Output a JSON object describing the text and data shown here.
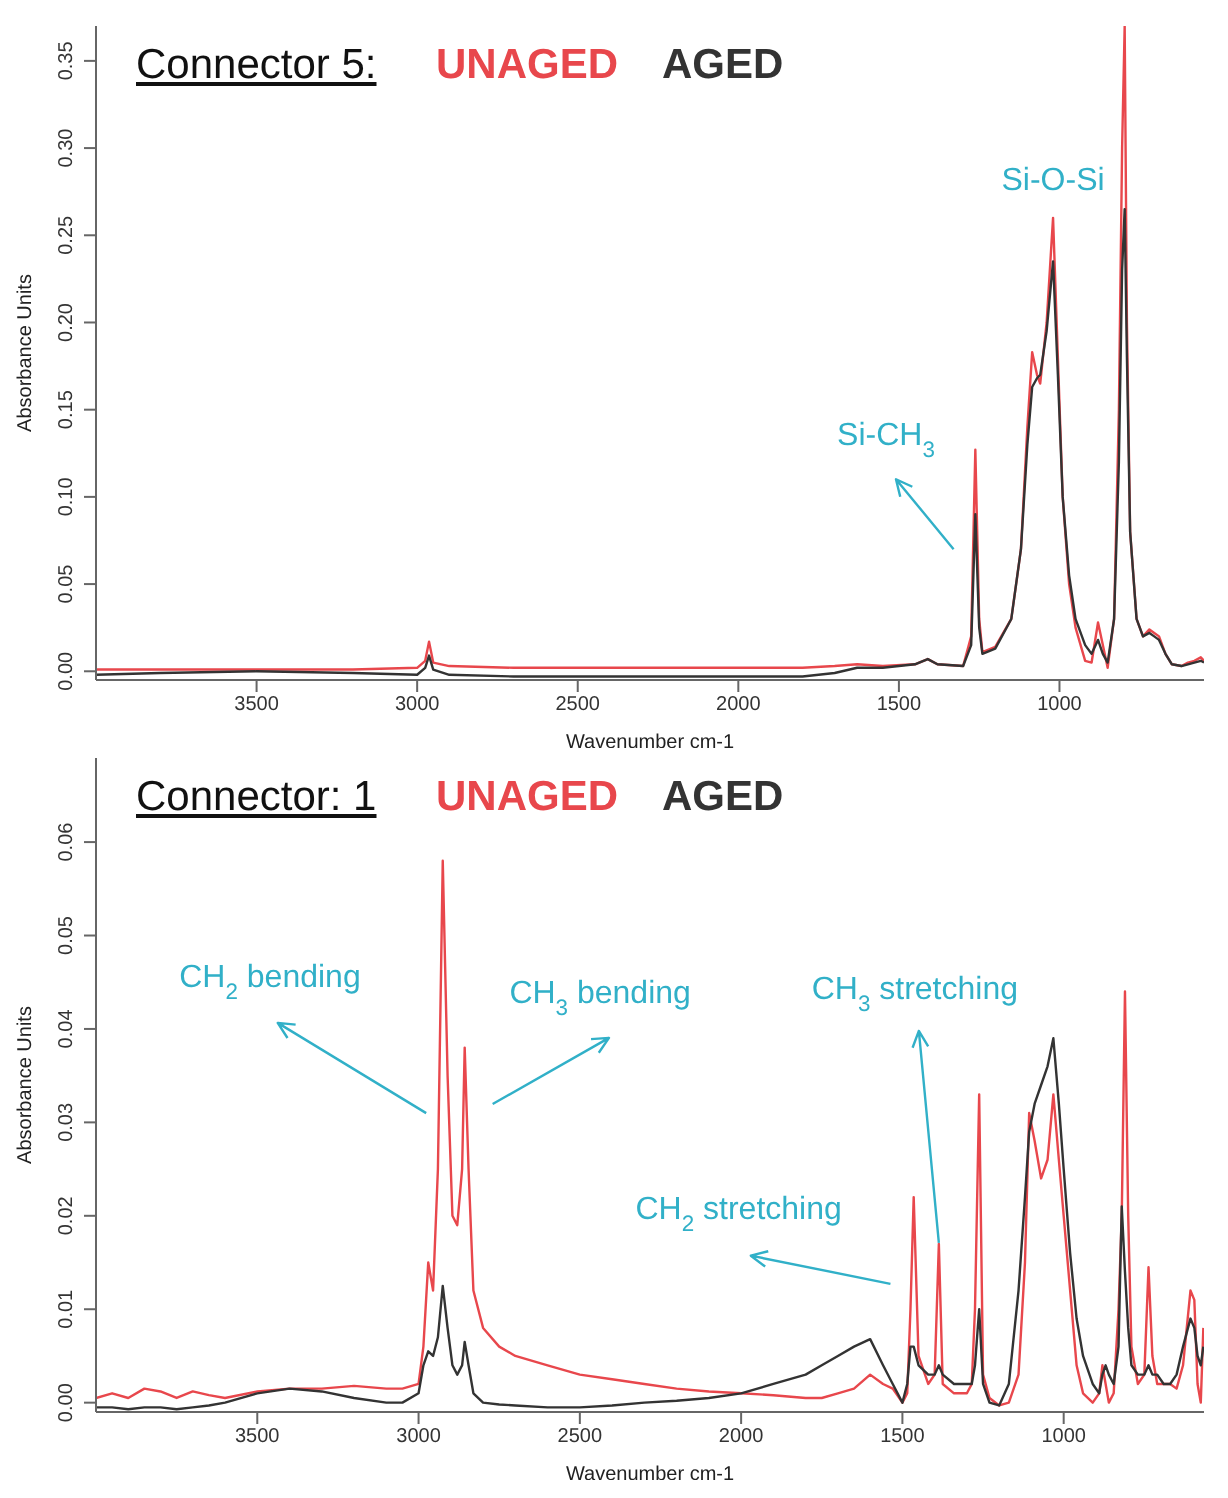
{
  "chart_data": [
    {
      "type": "line",
      "title": "Connector 5:",
      "xlabel": "Wavenumber cm-1",
      "ylabel": "Absorbance Units",
      "legend": "top left",
      "marker": "none",
      "line_style": "solid",
      "grid": false,
      "xlim": [
        4000,
        550
      ],
      "xticks": [
        3500,
        3000,
        2500,
        2000,
        1500,
        1000
      ],
      "ylim": [
        -0.005,
        0.37
      ],
      "yticks": [
        {
          "value": 0,
          "label": "0.00"
        },
        {
          "value": 0.05,
          "label": "0.05"
        },
        {
          "value": 0.1,
          "label": "0.10"
        },
        {
          "value": 0.15,
          "label": "0.15"
        },
        {
          "value": 0.2,
          "label": "0.20"
        },
        {
          "value": 0.25,
          "label": "0.25"
        },
        {
          "value": 0.3,
          "label": "0.30"
        },
        {
          "value": 0.35,
          "label": "0.35"
        }
      ],
      "annotations": [
        "Si-CH$_{3}$",
        {
          "text": "Si-O-Si",
          "x": 1020,
          "y": 0.26
        }
      ],
      "series": [
        {
          "name": "UNAGED",
          "color": "#e8474c",
          "x": [
            4000,
            3800,
            3500,
            3200,
            3000,
            2975,
            2963,
            2950,
            2900,
            2700,
            2500,
            2200,
            2000,
            1800,
            1700,
            1630,
            1550,
            1450,
            1410,
            1380,
            1300,
            1275,
            1262,
            1250,
            1240,
            1200,
            1150,
            1120,
            1100,
            1085,
            1070,
            1060,
            1040,
            1020,
            1005,
            990,
            970,
            950,
            920,
            900,
            880,
            865,
            850,
            830,
            815,
            805,
            797,
            790,
            780,
            760,
            740,
            720,
            705,
            690,
            670,
            650,
            620,
            600,
            580,
            560,
            550
          ],
          "values": [
            0.001,
            0.001,
            0.001,
            0.001,
            0.002,
            0.006,
            0.017,
            0.005,
            0.003,
            0.002,
            0.002,
            0.002,
            0.002,
            0.002,
            0.003,
            0.004,
            0.003,
            0.004,
            0.007,
            0.004,
            0.003,
            0.02,
            0.127,
            0.03,
            0.011,
            0.014,
            0.03,
            0.07,
            0.14,
            0.183,
            0.17,
            0.165,
            0.2,
            0.26,
            0.18,
            0.1,
            0.05,
            0.025,
            0.006,
            0.005,
            0.028,
            0.015,
            0.002,
            0.03,
            0.15,
            0.3,
            0.37,
            0.2,
            0.08,
            0.03,
            0.02,
            0.024,
            0.022,
            0.02,
            0.01,
            0.004,
            0.003,
            0.005,
            0.006,
            0.008,
            0.006
          ]
        },
        {
          "name": "AGED",
          "color": "#333333",
          "x": [
            4000,
            3800,
            3500,
            3200,
            3000,
            2975,
            2963,
            2950,
            2900,
            2700,
            2500,
            2200,
            2000,
            1800,
            1700,
            1630,
            1550,
            1450,
            1410,
            1380,
            1300,
            1275,
            1262,
            1250,
            1240,
            1200,
            1150,
            1120,
            1100,
            1085,
            1070,
            1060,
            1040,
            1020,
            1005,
            990,
            970,
            950,
            920,
            900,
            880,
            865,
            850,
            830,
            815,
            805,
            797,
            790,
            780,
            760,
            740,
            720,
            705,
            690,
            670,
            650,
            620,
            600,
            580,
            560,
            550
          ],
          "values": [
            -0.002,
            -0.001,
            0.0,
            -0.001,
            -0.002,
            0.002,
            0.009,
            0.001,
            -0.002,
            -0.003,
            -0.003,
            -0.003,
            -0.003,
            -0.003,
            -0.001,
            0.002,
            0.002,
            0.004,
            0.007,
            0.004,
            0.003,
            0.015,
            0.09,
            0.025,
            0.01,
            0.013,
            0.03,
            0.07,
            0.13,
            0.163,
            0.168,
            0.17,
            0.195,
            0.235,
            0.17,
            0.1,
            0.055,
            0.03,
            0.015,
            0.01,
            0.018,
            0.01,
            0.005,
            0.03,
            0.12,
            0.23,
            0.265,
            0.18,
            0.08,
            0.03,
            0.02,
            0.022,
            0.02,
            0.018,
            0.01,
            0.004,
            0.003,
            0.004,
            0.005,
            0.006,
            0.005
          ]
        }
      ]
    },
    {
      "type": "line",
      "title": "Connector: 1",
      "xlabel": "Wavenumber cm-1",
      "ylabel": "Absorbance Units",
      "legend": "top left",
      "marker": "none",
      "line_style": "solid",
      "grid": false,
      "xlim": [
        4000,
        565
      ],
      "xticks": [
        3500,
        3000,
        2500,
        2000,
        1500,
        1000
      ],
      "ylim": [
        -0.001,
        0.069
      ],
      "yticks": [
        {
          "value": 0,
          "label": "0.00"
        },
        {
          "value": 0.01,
          "label": "0.01"
        },
        {
          "value": 0.02,
          "label": "0.02"
        },
        {
          "value": 0.03,
          "label": "0.03"
        },
        {
          "value": 0.04,
          "label": "0.04"
        },
        {
          "value": 0.05,
          "label": "0.05"
        },
        {
          "value": 0.06,
          "label": "0.06"
        }
      ],
      "annotations": [
        "CH$_{2}$ bending",
        "CH$_{3}$ bending",
        {
          "text": "CH$_{3}$ stretching",
          "x": 1387,
          "y": 0.0171
        },
        "CH$_{2}$ stretching"
      ],
      "series": [
        {
          "name": "UNAGED",
          "color": "#e8474c",
          "x": [
            4000,
            3950,
            3900,
            3850,
            3800,
            3750,
            3700,
            3650,
            3600,
            3500,
            3400,
            3300,
            3200,
            3100,
            3050,
            3000,
            2985,
            2970,
            2955,
            2940,
            2925,
            2910,
            2895,
            2880,
            2865,
            2857,
            2845,
            2830,
            2800,
            2750,
            2700,
            2600,
            2500,
            2400,
            2300,
            2200,
            2100,
            2000,
            1900,
            1800,
            1750,
            1700,
            1650,
            1600,
            1560,
            1530,
            1500,
            1485,
            1475,
            1465,
            1450,
            1420,
            1400,
            1387,
            1375,
            1340,
            1300,
            1285,
            1275,
            1262,
            1250,
            1230,
            1200,
            1170,
            1140,
            1120,
            1107,
            1090,
            1070,
            1050,
            1032,
            1015,
            1000,
            980,
            960,
            940,
            910,
            890,
            880,
            870,
            860,
            845,
            830,
            820,
            810,
            800,
            790,
            770,
            750,
            737,
            725,
            710,
            690,
            670,
            650,
            630,
            607,
            595,
            585,
            575,
            567
          ],
          "values": [
            0.0005,
            0.001,
            0.0005,
            0.0015,
            0.0012,
            0.0005,
            0.0012,
            0.0008,
            0.0005,
            0.0012,
            0.0015,
            0.0015,
            0.0018,
            0.0015,
            0.0015,
            0.002,
            0.006,
            0.015,
            0.012,
            0.025,
            0.058,
            0.035,
            0.02,
            0.019,
            0.025,
            0.038,
            0.025,
            0.012,
            0.008,
            0.006,
            0.005,
            0.004,
            0.003,
            0.0025,
            0.002,
            0.0015,
            0.0012,
            0.001,
            0.0008,
            0.0005,
            0.0005,
            0.001,
            0.0015,
            0.003,
            0.002,
            0.0015,
            0.0,
            0.001,
            0.01,
            0.022,
            0.005,
            0.002,
            0.003,
            0.017,
            0.002,
            0.001,
            0.001,
            0.002,
            0.01,
            0.033,
            0.003,
            0.0005,
            -0.0003,
            0.0,
            0.003,
            0.015,
            0.031,
            0.028,
            0.024,
            0.026,
            0.033,
            0.026,
            0.02,
            0.012,
            0.004,
            0.001,
            0.0,
            0.001,
            0.004,
            0.002,
            0.0,
            0.001,
            0.01,
            0.02,
            0.044,
            0.02,
            0.006,
            0.002,
            0.003,
            0.0145,
            0.005,
            0.002,
            0.002,
            0.002,
            0.0015,
            0.004,
            0.012,
            0.011,
            0.002,
            0.0,
            0.008
          ]
        },
        {
          "name": "AGED",
          "color": "#333333",
          "x": [
            4000,
            3950,
            3900,
            3850,
            3800,
            3750,
            3700,
            3650,
            3600,
            3500,
            3400,
            3300,
            3200,
            3100,
            3050,
            3000,
            2985,
            2970,
            2955,
            2940,
            2925,
            2910,
            2895,
            2880,
            2865,
            2857,
            2845,
            2830,
            2800,
            2750,
            2700,
            2600,
            2500,
            2400,
            2300,
            2200,
            2100,
            2000,
            1900,
            1800,
            1750,
            1700,
            1650,
            1600,
            1560,
            1530,
            1500,
            1485,
            1475,
            1465,
            1450,
            1420,
            1400,
            1387,
            1375,
            1340,
            1300,
            1285,
            1275,
            1262,
            1250,
            1230,
            1200,
            1170,
            1140,
            1120,
            1107,
            1090,
            1070,
            1050,
            1032,
            1015,
            1000,
            980,
            960,
            940,
            910,
            890,
            880,
            870,
            860,
            845,
            830,
            820,
            810,
            800,
            790,
            770,
            750,
            737,
            725,
            710,
            690,
            670,
            650,
            630,
            607,
            595,
            585,
            575,
            567
          ],
          "values": [
            -0.0005,
            -0.0005,
            -0.0007,
            -0.0005,
            -0.0005,
            -0.0007,
            -0.0005,
            -0.0003,
            0.0,
            0.001,
            0.0015,
            0.0012,
            0.0005,
            0.0,
            0.0,
            0.001,
            0.004,
            0.0055,
            0.005,
            0.007,
            0.0125,
            0.008,
            0.004,
            0.003,
            0.004,
            0.0065,
            0.004,
            0.001,
            0.0,
            -0.0002,
            -0.0003,
            -0.0005,
            -0.0005,
            -0.0003,
            0.0,
            0.0002,
            0.0005,
            0.001,
            0.002,
            0.003,
            0.004,
            0.005,
            0.006,
            0.0068,
            0.004,
            0.002,
            0.0,
            0.002,
            0.006,
            0.006,
            0.004,
            0.003,
            0.003,
            0.004,
            0.003,
            0.002,
            0.002,
            0.002,
            0.004,
            0.01,
            0.002,
            0.0,
            -0.0003,
            0.002,
            0.012,
            0.022,
            0.029,
            0.032,
            0.034,
            0.036,
            0.039,
            0.032,
            0.025,
            0.016,
            0.009,
            0.005,
            0.002,
            0.001,
            0.003,
            0.004,
            0.003,
            0.002,
            0.006,
            0.021,
            0.014,
            0.008,
            0.004,
            0.003,
            0.003,
            0.004,
            0.003,
            0.003,
            0.002,
            0.002,
            0.003,
            0.006,
            0.009,
            0.008,
            0.005,
            0.004,
            0.006
          ]
        }
      ]
    }
  ]
}
